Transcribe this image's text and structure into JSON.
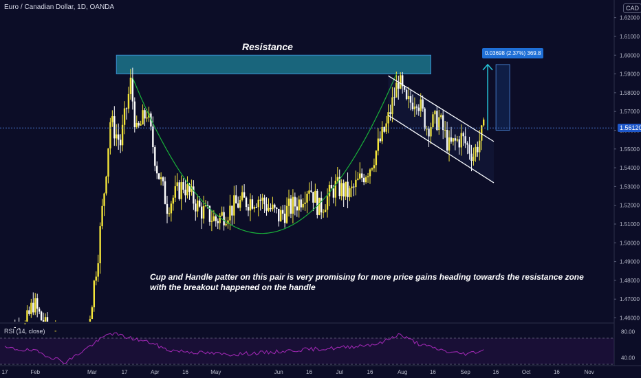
{
  "header": {
    "symbol_title": "Euro / Canadian Dollar, 1D, OANDA",
    "currency_label": "CAD"
  },
  "annotations": {
    "resistance_label": "Resistance",
    "note_text": "Cup and Handle patter on this pair is very promising for more price gains heading towards the resistance zone with the breakout happened on the handle",
    "measure_label": "0.03698 (2.37%) 369.8",
    "last_price_label": "1.56120"
  },
  "indicator": {
    "title": "RSI (14, close)"
  },
  "colors": {
    "background": "#0c0d27",
    "bull": "#f4e53a",
    "bear": "#ffffff",
    "resistance_zone": "#1b6f86",
    "cup_curve": "#19b33a",
    "rsi_line": "#9c27b0",
    "channel": "#ffffff",
    "target_arrow": "#26c6da"
  },
  "chart_data": {
    "type": "candlestick",
    "title": "Euro / Canadian Dollar, 1D, OANDA",
    "price_axis": {
      "ticks": [
        "1.62000",
        "1.61000",
        "1.60000",
        "1.59000",
        "1.58000",
        "1.57000",
        "1.56000",
        "1.55000",
        "1.54000",
        "1.53000",
        "1.52000",
        "1.51000",
        "1.50000",
        "1.49000",
        "1.48000",
        "1.47000",
        "1.46000"
      ],
      "range": [
        1.458,
        1.625
      ]
    },
    "rsi_axis": {
      "ticks": [
        "80.00",
        "40.00"
      ],
      "range": [
        30,
        90
      ],
      "upper_band": 70,
      "lower_band": 30
    },
    "time_axis": {
      "labels": [
        {
          "t": "17",
          "d": 0
        },
        {
          "t": "Feb",
          "d": 15
        },
        {
          "t": "Mar",
          "d": 43
        },
        {
          "t": "17",
          "d": 59
        },
        {
          "t": "Apr",
          "d": 74
        },
        {
          "t": "16",
          "d": 89
        },
        {
          "t": "May",
          "d": 104
        },
        {
          "t": "Jun",
          "d": 135
        },
        {
          "t": "16",
          "d": 150
        },
        {
          "t": "Jul",
          "d": 165
        },
        {
          "t": "16",
          "d": 180
        },
        {
          "t": "Aug",
          "d": 196
        },
        {
          "t": "16",
          "d": 211
        },
        {
          "t": "Sep",
          "d": 227
        },
        {
          "t": "16",
          "d": 242
        },
        {
          "t": "Oct",
          "d": 257
        },
        {
          "t": "16",
          "d": 272
        },
        {
          "t": "Nov",
          "d": 288
        }
      ]
    },
    "price_path": [
      {
        "d": 0,
        "p": 1.452
      },
      {
        "d": 10,
        "p": 1.455
      },
      {
        "d": 14,
        "p": 1.468
      },
      {
        "d": 20,
        "p": 1.455
      },
      {
        "d": 30,
        "p": 1.44
      },
      {
        "d": 40,
        "p": 1.448
      },
      {
        "d": 43,
        "p": 1.47
      },
      {
        "d": 46,
        "p": 1.495
      },
      {
        "d": 49,
        "p": 1.528
      },
      {
        "d": 52,
        "p": 1.565
      },
      {
        "d": 57,
        "p": 1.553
      },
      {
        "d": 62,
        "p": 1.585
      },
      {
        "d": 65,
        "p": 1.558
      },
      {
        "d": 70,
        "p": 1.57
      },
      {
        "d": 75,
        "p": 1.54
      },
      {
        "d": 80,
        "p": 1.52
      },
      {
        "d": 88,
        "p": 1.531
      },
      {
        "d": 96,
        "p": 1.518
      },
      {
        "d": 104,
        "p": 1.512
      },
      {
        "d": 115,
        "p": 1.521
      },
      {
        "d": 125,
        "p": 1.524
      },
      {
        "d": 135,
        "p": 1.514
      },
      {
        "d": 145,
        "p": 1.522
      },
      {
        "d": 150,
        "p": 1.531
      },
      {
        "d": 155,
        "p": 1.518
      },
      {
        "d": 163,
        "p": 1.53
      },
      {
        "d": 170,
        "p": 1.526
      },
      {
        "d": 180,
        "p": 1.541
      },
      {
        "d": 188,
        "p": 1.562
      },
      {
        "d": 194,
        "p": 1.587
      },
      {
        "d": 198,
        "p": 1.573
      },
      {
        "d": 203,
        "p": 1.578
      },
      {
        "d": 208,
        "p": 1.562
      },
      {
        "d": 214,
        "p": 1.566
      },
      {
        "d": 219,
        "p": 1.551
      },
      {
        "d": 225,
        "p": 1.556
      },
      {
        "d": 231,
        "p": 1.547
      },
      {
        "d": 236,
        "p": 1.56
      }
    ],
    "resistance_zone": {
      "d_start": 55,
      "d_end": 210,
      "p_low": 1.59,
      "p_high": 1.6
    },
    "cup_curve": {
      "d_start": 63,
      "d_mid": 126,
      "d_end": 193,
      "p_start": 1.588,
      "p_mid": 1.505,
      "p_end": 1.59
    },
    "channel": {
      "upper": {
        "d1": 189,
        "p1": 1.589,
        "d2": 241,
        "p2": 1.554
      },
      "lower": {
        "d1": 189,
        "p1": 1.568,
        "d2": 241,
        "p2": 1.532
      }
    },
    "target": {
      "d": 238,
      "p_from": 1.56,
      "p_to": 1.595
    },
    "last_price": 1.5612,
    "rsi_path": [
      {
        "d": 0,
        "v": 55
      },
      {
        "d": 15,
        "v": 50
      },
      {
        "d": 30,
        "v": 33
      },
      {
        "d": 43,
        "v": 60
      },
      {
        "d": 52,
        "v": 78
      },
      {
        "d": 62,
        "v": 70
      },
      {
        "d": 72,
        "v": 63
      },
      {
        "d": 80,
        "v": 52
      },
      {
        "d": 95,
        "v": 48
      },
      {
        "d": 110,
        "v": 45
      },
      {
        "d": 130,
        "v": 48
      },
      {
        "d": 145,
        "v": 52
      },
      {
        "d": 165,
        "v": 55
      },
      {
        "d": 185,
        "v": 62
      },
      {
        "d": 194,
        "v": 76
      },
      {
        "d": 205,
        "v": 60
      },
      {
        "d": 220,
        "v": 48
      },
      {
        "d": 228,
        "v": 46
      },
      {
        "d": 236,
        "v": 52
      }
    ]
  }
}
